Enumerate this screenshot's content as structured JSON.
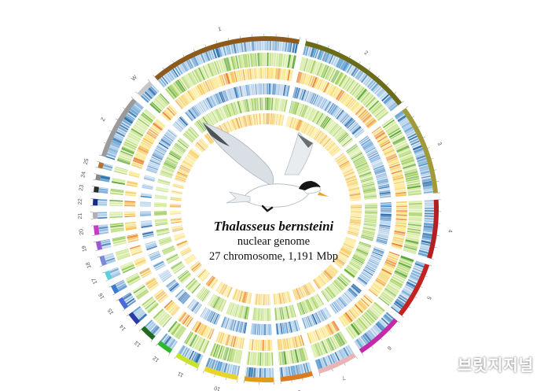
{
  "figure": {
    "species_name": "Thalasseus bernsteini",
    "subtitle": "nuclear genome",
    "stats": "27 chromosome, 1,191 Mbp"
  },
  "watermark": "브릿지저널",
  "bird_illustration": "crested-tern-in-flight",
  "chromosomes": [
    {
      "label": "1",
      "size": 16,
      "color": "#8b5a1c"
    },
    {
      "label": "2",
      "size": 12,
      "color": "#6b6b1a"
    },
    {
      "label": "3",
      "size": 9.5,
      "color": "#a19a3a"
    },
    {
      "label": "4",
      "size": 6.2,
      "color": "#b31f22"
    },
    {
      "label": "5",
      "size": 6.0,
      "color": "#c42121"
    },
    {
      "label": "6",
      "size": 5.0,
      "color": "#c42aa8"
    },
    {
      "label": "7",
      "size": 4.2,
      "color": "#e9b4b4"
    },
    {
      "label": "8",
      "size": 3.4,
      "color": "#d97b1e"
    },
    {
      "label": "9",
      "size": 3.1,
      "color": "#e29a1a"
    },
    {
      "label": "10",
      "size": 3.6,
      "color": "#e8d42a"
    },
    {
      "label": "11",
      "size": 2.6,
      "color": "#c8e42a"
    },
    {
      "label": "12",
      "size": 1.6,
      "color": "#2fb82f"
    },
    {
      "label": "13",
      "size": 1.6,
      "color": "#1e6b1e"
    },
    {
      "label": "14",
      "size": 1.3,
      "color": "#2a3aa8"
    },
    {
      "label": "15",
      "size": 1.2,
      "color": "#4a6adb"
    },
    {
      "label": "16",
      "size": 0.9,
      "color": "#3a7ad0"
    },
    {
      "label": "17",
      "size": 0.9,
      "color": "#5ad0d8"
    },
    {
      "label": "18",
      "size": 1.0,
      "color": "#7a8ad8"
    },
    {
      "label": "19",
      "size": 0.9,
      "color": "#9a5ad8"
    },
    {
      "label": "20",
      "size": 1.0,
      "color": "#c63ac6"
    },
    {
      "label": "21",
      "size": 0.7,
      "color": "#b0b0b0"
    },
    {
      "label": "22",
      "size": 0.7,
      "color": "#1a2a88"
    },
    {
      "label": "23",
      "size": 0.6,
      "color": "#2a2a2a"
    },
    {
      "label": "24",
      "size": 0.6,
      "color": "#888888"
    },
    {
      "label": "25",
      "size": 0.6,
      "color": "#b8722a"
    },
    {
      "label": "Z",
      "size": 6.8,
      "color": "#9a9a9a"
    },
    {
      "label": "W",
      "size": 1.8,
      "color": "#c8c8c8"
    }
  ],
  "tracks": [
    {
      "palette": [
        "#dce9f5",
        "#9ec4e4",
        "#5b9bd0",
        "#2a6eaa"
      ]
    },
    {
      "palette": [
        "#eef6d2",
        "#cfe79a",
        "#9fce5e",
        "#5da83a"
      ]
    },
    {
      "palette": [
        "#fdf6c8",
        "#fbe58a",
        "#f6c35a",
        "#e9823a"
      ]
    },
    {
      "palette": [
        "#e4eef8",
        "#a8c8e6",
        "#6aa2d4",
        "#2f70ae"
      ]
    },
    {
      "palette": [
        "#f1f8d8",
        "#d2e9a0",
        "#a8d268",
        "#6cae3e"
      ]
    },
    {
      "palette": [
        "#fef8d0",
        "#fce89a",
        "#f8cc68",
        "#ee9a42"
      ]
    }
  ]
}
